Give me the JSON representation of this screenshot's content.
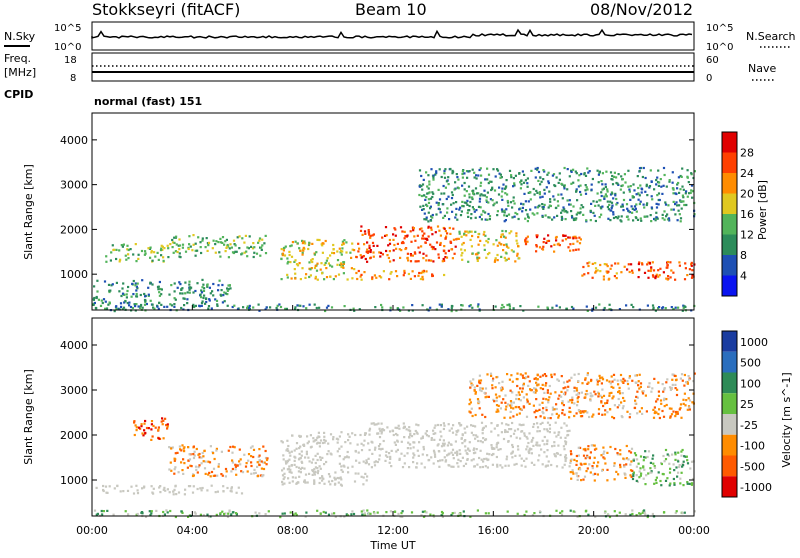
{
  "header": {
    "station": "Stokkseyri (fitACF)",
    "beam": "Beam 10",
    "date": "08/Nov/2012"
  },
  "top_panels": {
    "nsky_label": "N.Sky",
    "nsearch_label": "N.Search",
    "noise_ticks": [
      "10^5",
      "10^0"
    ],
    "freq_label_1": "Freq.",
    "freq_label_2": "[MHz]",
    "freq_ticks": [
      "18",
      "8"
    ],
    "nave_label": "Nave",
    "nave_ticks": [
      "60",
      "0"
    ],
    "cpid_label": "CPID",
    "cpid_value": "normal (fast) 151"
  },
  "colors": {
    "power_scale": [
      "#0a14f0",
      "#1e50b4",
      "#2c8c5a",
      "#52b45a",
      "#e0c820",
      "#ff8c00",
      "#ff4000",
      "#e00000"
    ],
    "velocity_scale": [
      "#1a3ca0",
      "#2a6ebe",
      "#2e8b57",
      "#66c040",
      "#c8c8c0",
      "#ff8c00",
      "#ff5a00",
      "#e00000"
    ],
    "ground_scatter": "#c8c8c0"
  },
  "chart_data": [
    {
      "type": "heatmap",
      "name": "power",
      "ylabel": "Slant Range [km]",
      "yticks": [
        1000,
        2000,
        3000,
        4000
      ],
      "ylim": [
        200,
        4600
      ],
      "xlim": [
        0,
        24
      ],
      "colorbar_label": "Power [dB]",
      "colorbar_ticks": [
        "4",
        "8",
        "12",
        "16",
        "20",
        "24",
        "28"
      ],
      "colorbar_range": [
        0,
        32
      ],
      "bands": [
        {
          "t0": 0.0,
          "t1": 5.5,
          "r0": 300,
          "r1": 900,
          "level": 2
        },
        {
          "t0": 0.5,
          "t1": 3.0,
          "r0": 1300,
          "r1": 1700,
          "level": 3
        },
        {
          "t0": 3.0,
          "t1": 7.0,
          "r0": 1400,
          "r1": 1900,
          "level": 3
        },
        {
          "t0": 7.5,
          "t1": 10.5,
          "r0": 900,
          "r1": 1800,
          "level": 4
        },
        {
          "t0": 10.5,
          "t1": 14.5,
          "r0": 1300,
          "r1": 2100,
          "level": 6
        },
        {
          "t0": 10.5,
          "t1": 14.0,
          "r0": 900,
          "r1": 1100,
          "level": 5
        },
        {
          "t0": 14.5,
          "t1": 17.0,
          "r0": 1300,
          "r1": 2000,
          "level": 4
        },
        {
          "t0": 17.0,
          "t1": 19.5,
          "r0": 1500,
          "r1": 1900,
          "level": 6
        },
        {
          "t0": 19.5,
          "t1": 21.0,
          "r0": 900,
          "r1": 1300,
          "level": 5
        },
        {
          "t0": 21.0,
          "t1": 24.0,
          "r0": 900,
          "r1": 1300,
          "level": 6
        },
        {
          "t0": 13.0,
          "t1": 24.0,
          "r0": 2200,
          "r1": 3400,
          "level": 2
        },
        {
          "t0": 0.0,
          "t1": 24.0,
          "r0": 200,
          "r1": 350,
          "level": 2
        }
      ]
    },
    {
      "type": "heatmap",
      "name": "velocity",
      "ylabel": "Slant Range [km]",
      "yticks": [
        1000,
        2000,
        3000,
        4000
      ],
      "ylim": [
        200,
        4600
      ],
      "xlim": [
        0,
        24
      ],
      "xlabel": "Time UT",
      "xticks": [
        "00:00",
        "04:00",
        "08:00",
        "12:00",
        "16:00",
        "20:00",
        "00:00"
      ],
      "colorbar_label": "Velocity [m s^-1]",
      "colorbar_ticks": [
        "1000",
        "500",
        "100",
        "25",
        "-25",
        "-100",
        "-500",
        "-1000"
      ],
      "bands": [
        {
          "t0": 0.0,
          "t1": 6.0,
          "r0": 700,
          "r1": 900,
          "level": 4
        },
        {
          "t0": 3.0,
          "t1": 7.0,
          "r0": 1100,
          "r1": 1800,
          "level": 5
        },
        {
          "t0": 1.5,
          "t1": 3.0,
          "r0": 1900,
          "r1": 2400,
          "level": 6
        },
        {
          "t0": 7.5,
          "t1": 11.0,
          "r0": 900,
          "r1": 2100,
          "level": 4
        },
        {
          "t0": 11.0,
          "t1": 19.0,
          "r0": 1300,
          "r1": 2300,
          "level": 4
        },
        {
          "t0": 19.0,
          "t1": 21.5,
          "r0": 1000,
          "r1": 1800,
          "level": 5
        },
        {
          "t0": 21.5,
          "t1": 24.0,
          "r0": 900,
          "r1": 1700,
          "level": 3
        },
        {
          "t0": 0.0,
          "t1": 24.0,
          "r0": 200,
          "r1": 350,
          "level": 3
        },
        {
          "t0": 15.0,
          "t1": 24.0,
          "r0": 2400,
          "r1": 3400,
          "level": 5
        }
      ]
    }
  ]
}
